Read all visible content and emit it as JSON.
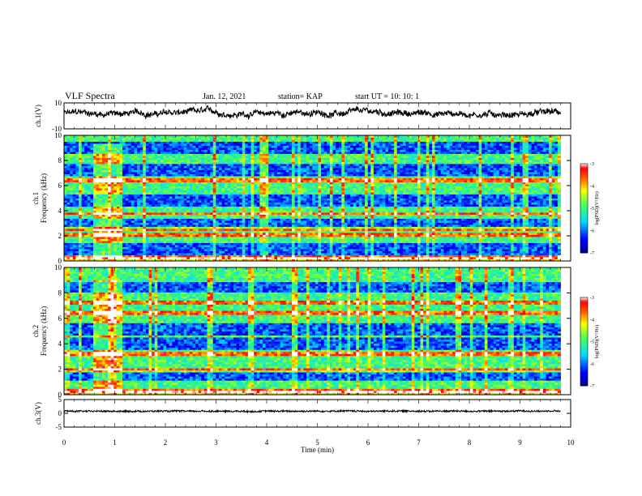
{
  "header": {
    "title": "VLF Spectra",
    "date": "Jan. 12, 2021",
    "station": "station= KAP",
    "start_ut": "start UT =  10: 10: 1"
  },
  "chart_data": [
    {
      "type": "line",
      "name": "ch1-waveform",
      "ylabel": "ch.1(V)",
      "ylim": [
        -10,
        10
      ],
      "y_ticks": [
        "10",
        "-10"
      ],
      "xlim": [
        0,
        10
      ],
      "approx_level": 2
    },
    {
      "type": "heatmap",
      "name": "ch1-spectrogram",
      "ylabel_line1": "ch.1",
      "ylabel_line2": "Frequency (kHz)",
      "ylim": [
        0,
        10
      ],
      "y_ticks": [
        "0",
        "2",
        "4",
        "6",
        "8",
        "10"
      ],
      "xlim": [
        0,
        10
      ],
      "data_end_min": 9.8,
      "colorbar": {
        "label": "log(PSD)(V²/Hz)",
        "range": [
          -7,
          -3
        ],
        "ticks": [
          "-3",
          "-4",
          "-5",
          "-6",
          "-7"
        ]
      },
      "burst": {
        "t_start": 0.55,
        "t_end": 1.15,
        "f_low": 0.3,
        "f_high": 9.3
      },
      "strong_bands_khz": [
        0.3,
        2.1,
        2.6,
        3.8,
        6.5
      ],
      "weak_bands_khz": [
        1.0,
        3.0,
        4.8,
        7.3,
        9.0
      ]
    },
    {
      "type": "heatmap",
      "name": "ch2-spectrogram",
      "ylabel_line1": "ch.2",
      "ylabel_line2": "Frequency (kHz)",
      "ylim": [
        0,
        10
      ],
      "y_ticks": [
        "0",
        "2",
        "4",
        "6",
        "8",
        "10"
      ],
      "xlim": [
        0,
        10
      ],
      "data_end_min": 9.8,
      "colorbar": {
        "label": "log(PSD)(V²/Hz)",
        "range": [
          -7,
          -3
        ],
        "ticks": [
          "-3",
          "-4",
          "-5",
          "-6",
          "-7"
        ]
      },
      "burst": {
        "t_start": 0.55,
        "t_end": 1.15,
        "f_low": 0.3,
        "f_high": 9.0
      },
      "strong_bands_khz": [
        0.3,
        2.0,
        3.2,
        6.5,
        7.3
      ],
      "weak_bands_khz": [
        1.5,
        4.0,
        5.2,
        8.5
      ]
    },
    {
      "type": "line",
      "name": "ch3-waveform",
      "ylabel": "ch.3(V)",
      "ylim": [
        -5,
        5
      ],
      "y_ticks": [
        "5",
        "0",
        "-5"
      ],
      "xlim": [
        0,
        10
      ],
      "approx_level": 0.8
    }
  ],
  "xaxis": {
    "label": "Time (min)",
    "ticks": [
      "0",
      "1",
      "2",
      "3",
      "4",
      "5",
      "6",
      "7",
      "8",
      "9",
      "10"
    ]
  }
}
